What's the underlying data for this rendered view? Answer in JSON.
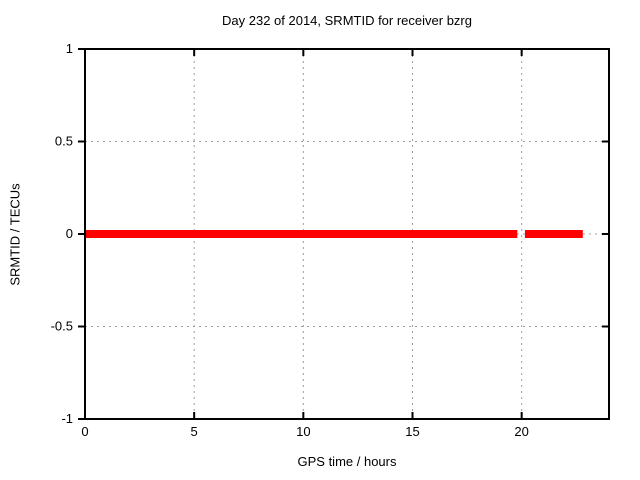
{
  "chart_data": {
    "type": "line",
    "title": "Day 232 of 2014, SRMTID for receiver bzrg",
    "xlabel": "GPS time / hours",
    "ylabel": "SRMTID / TECUs",
    "xlim": [
      0,
      24
    ],
    "ylim": [
      -1,
      1
    ],
    "xticks": [
      0,
      5,
      10,
      15,
      20
    ],
    "yticks": [
      -1,
      -0.5,
      0,
      0.5,
      1
    ],
    "grid": true,
    "grid_style": "dashed",
    "legend_position": "none",
    "series": [
      {
        "name": "SRMTID",
        "color": "#ff0000",
        "linewidth": 8,
        "segments": [
          {
            "x_start": 0,
            "x_end": 19.8,
            "y": 0
          },
          {
            "x_start": 20.15,
            "x_end": 22.8,
            "y": 0
          }
        ]
      }
    ]
  },
  "colors": {
    "line": "#ff0000",
    "grid": "#9e9e9e",
    "border": "#000000",
    "text": "#000000",
    "background": "#ffffff"
  }
}
